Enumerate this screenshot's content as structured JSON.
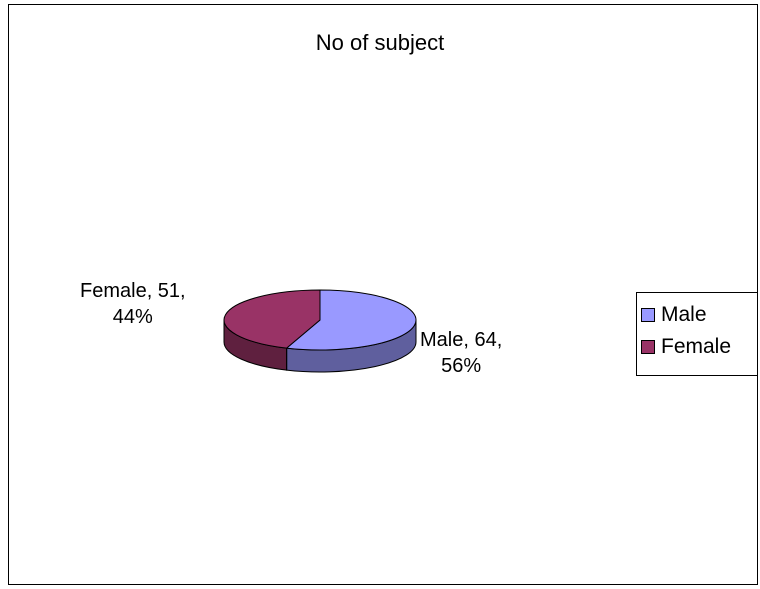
{
  "chart_data": {
    "type": "pie",
    "title": "No of subject",
    "slices": [
      {
        "name": "Male",
        "value": 64,
        "percent": 56,
        "label_line1": "Male, 64,",
        "label_line2": "56%",
        "color": "#9999ff"
      },
      {
        "name": "Female",
        "value": 51,
        "percent": 44,
        "label_line1": "Female, 51,",
        "label_line2": "44%",
        "color": "#993366"
      }
    ],
    "legend": {
      "placement": "right",
      "entries": [
        "Male",
        "Female"
      ]
    }
  }
}
